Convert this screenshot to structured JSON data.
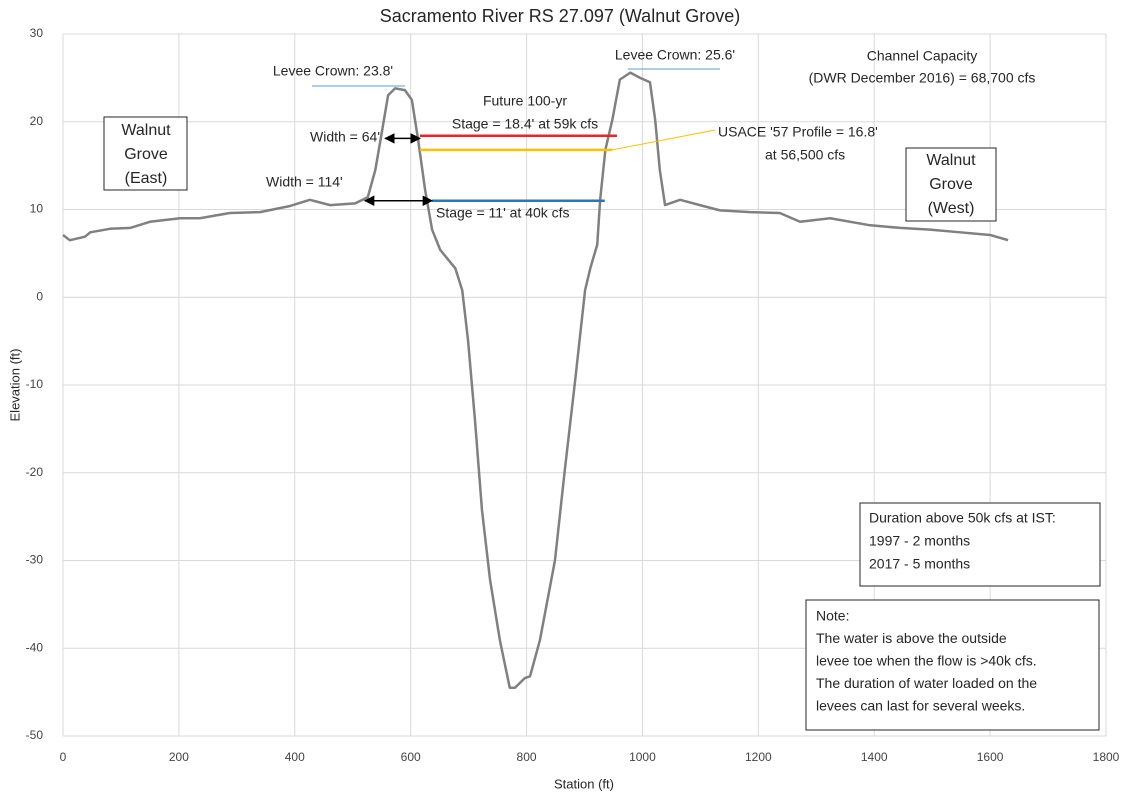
{
  "chart_data": {
    "type": "line",
    "title": "Sacramento River RS 27.097 (Walnut Grove)",
    "x_label": "Station (ft)",
    "y_label": "Elevation (ft)",
    "xlim": [
      0,
      1800
    ],
    "xticks": [
      0,
      200,
      400,
      600,
      800,
      1000,
      1200,
      1400,
      1600,
      1800
    ],
    "ylim": [
      -50,
      30
    ],
    "yticks": [
      -50,
      -40,
      -30,
      -20,
      -10,
      0,
      10,
      20,
      30
    ],
    "grid": true,
    "series": [
      {
        "color": "#808080",
        "x": [
          0,
          12,
          38,
          47,
          81,
          116,
          150,
          202,
          236,
          288,
          340,
          392,
          426,
          461,
          504,
          526,
          539,
          551,
          561,
          573,
          590,
          602,
          613,
          625,
          637,
          651,
          677,
          689,
          699,
          711,
          723,
          737,
          754,
          771,
          780,
          797,
          806,
          823,
          849,
          866,
          884,
          901,
          910,
          922,
          927,
          936,
          948,
          961,
          979,
          996,
          1013,
          1022,
          1030,
          1039,
          1065,
          1099,
          1134,
          1186,
          1237,
          1272,
          1324,
          1393,
          1445,
          1496,
          1548,
          1600,
          1631
        ],
        "values": [
          7.1,
          6.5,
          6.9,
          7.4,
          7.8,
          7.9,
          8.6,
          9.0,
          9.0,
          9.6,
          9.7,
          10.4,
          11.1,
          10.5,
          10.7,
          11.4,
          14.5,
          19.1,
          23.0,
          23.8,
          23.6,
          22.5,
          17.9,
          12.2,
          7.7,
          5.4,
          3.3,
          0.8,
          -4.9,
          -14,
          -24.2,
          -32.2,
          -39.1,
          -44.5,
          -44.5,
          -43.4,
          -43.2,
          -39.1,
          -30,
          -19.7,
          -9.4,
          0.8,
          3.3,
          6.0,
          11.1,
          16.8,
          20.2,
          24.8,
          25.6,
          25.0,
          24.5,
          20.2,
          14.5,
          10.5,
          11.1,
          10.5,
          9.9,
          9.7,
          9.6,
          8.6,
          9.0,
          8.2,
          7.9,
          7.7,
          7.4,
          7.1,
          6.5
        ]
      }
    ],
    "reference_lines": [
      {
        "label": [
          "Future 100-yr",
          "Stage = 18.4' at 59k cfs"
        ],
        "y": 18.4,
        "x": [
          616,
          956
        ],
        "color": "#e8262a"
      },
      {
        "label": [
          "USACE '57 Profile = 16.8'",
          "at 56,500 cfs"
        ],
        "y": 16.8,
        "x": [
          616,
          948
        ],
        "color": "#ffc000"
      },
      {
        "label": [
          "Stage = 11' at 40k cfs"
        ],
        "y": 11,
        "x": [
          637,
          935
        ],
        "color": "#2e75b6"
      }
    ],
    "widths": [
      {
        "label": "Width = 64'",
        "y": 18.1,
        "x": [
          556,
          616
        ]
      },
      {
        "label": "Width = 114'",
        "y": 11,
        "x": [
          521,
          637
        ]
      }
    ],
    "levee_crowns": [
      "Levee Crown: 23.8'",
      "Levee Crown: 25.6'"
    ],
    "channel_capacity": [
      "Channel Capacity",
      "(DWR December 2016) = 68,700 cfs"
    ],
    "boxes": [
      [
        "Walnut",
        "Grove",
        "(East)"
      ],
      [
        "Walnut",
        "Grove",
        "(West)"
      ],
      [
        "Duration above 50k cfs at IST:",
        "1997 - 2 months",
        "2017 - 5 months"
      ],
      [
        "Note:",
        "The water is above the outside",
        "levee toe when the flow is >40k cfs.",
        "The duration of water loaded on the",
        "levees can last for several weeks."
      ]
    ]
  }
}
